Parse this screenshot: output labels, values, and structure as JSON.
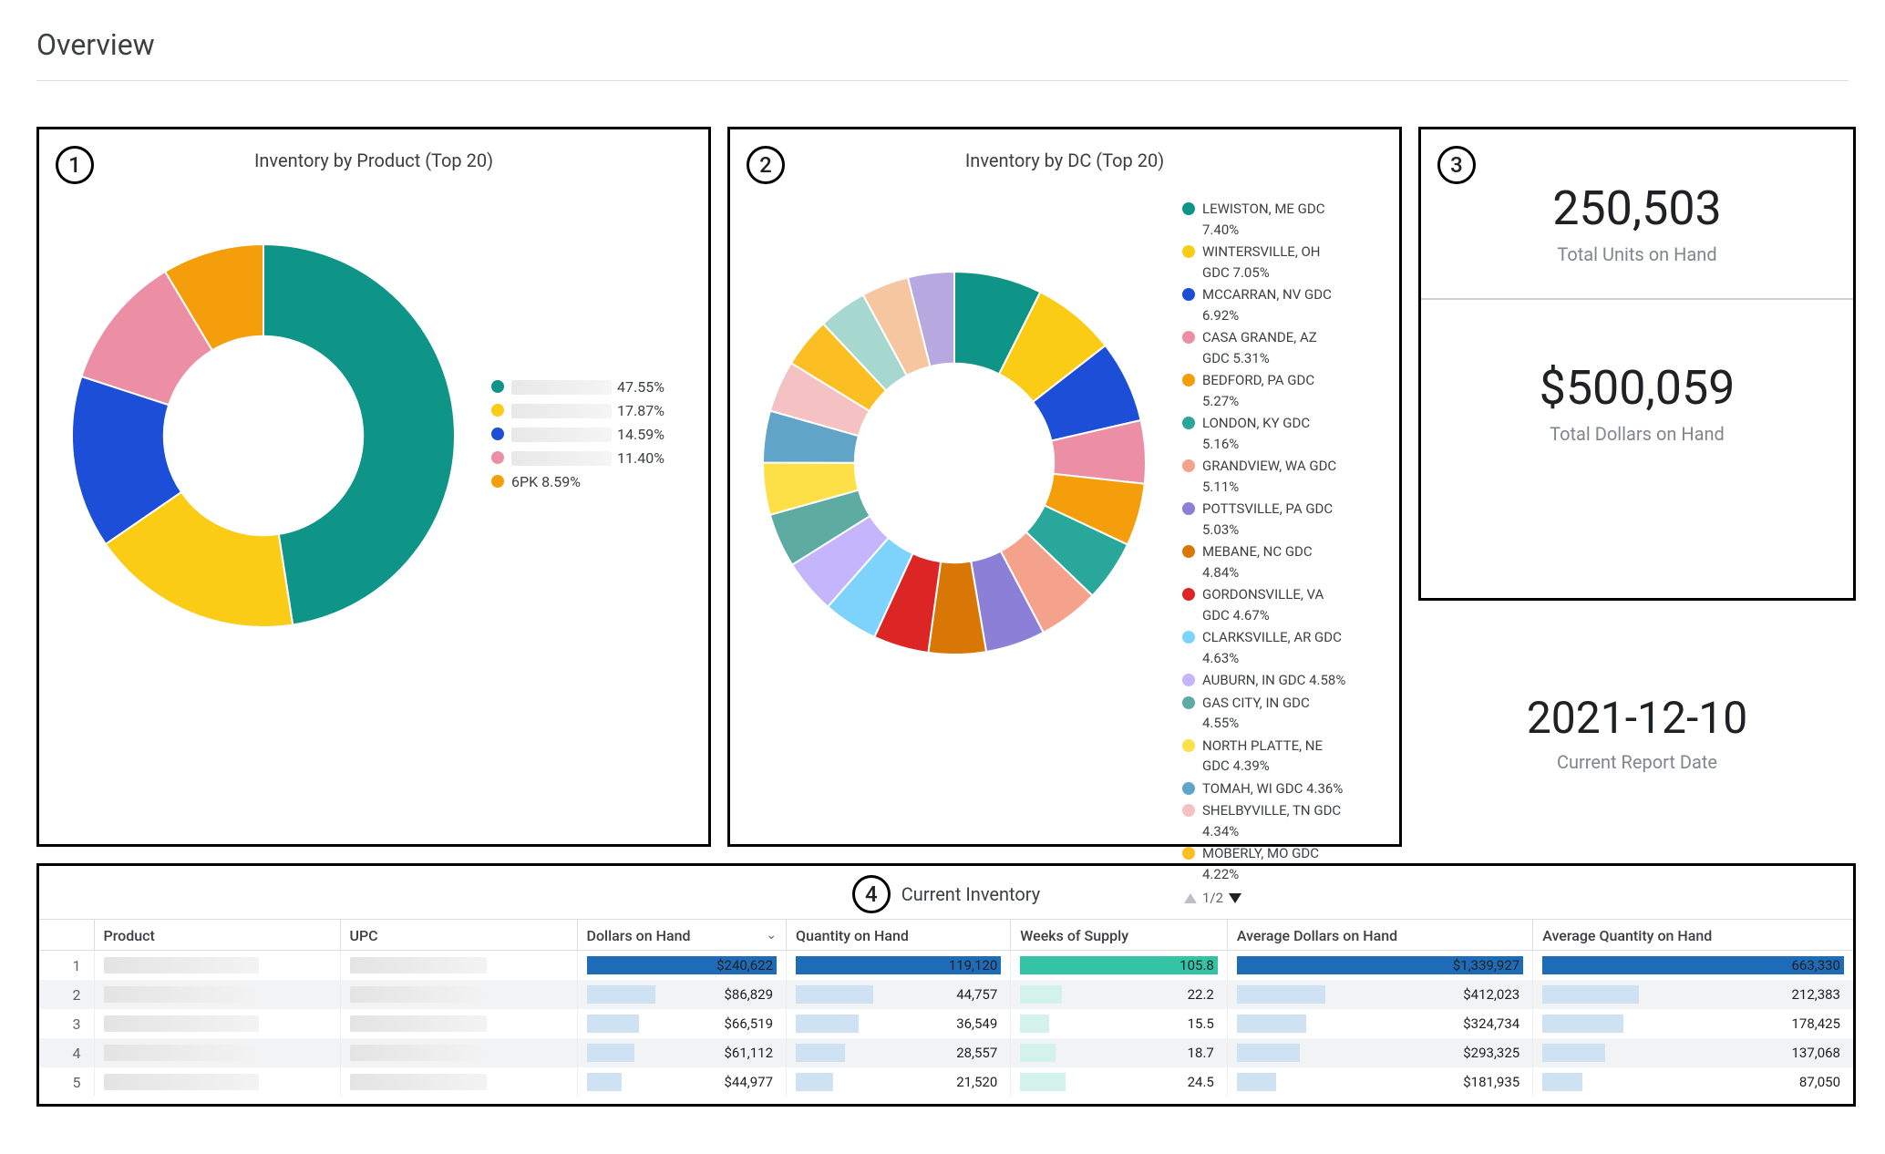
{
  "page": {
    "title": "Overview"
  },
  "panel_badges": [
    "1",
    "2",
    "3",
    "4"
  ],
  "chart1": {
    "type": "donut",
    "title": "Inventory by Product (Top 20)",
    "inner_radius_ratio": 0.52,
    "background": "#ffffff",
    "slices": [
      {
        "label_redacted": true,
        "pct_label": "47.55%",
        "value": 47.55,
        "color": "#0f9488"
      },
      {
        "label_redacted": true,
        "pct_label": "17.87%",
        "value": 17.87,
        "color": "#facc15"
      },
      {
        "label_redacted": true,
        "pct_label": "14.59%",
        "value": 14.59,
        "color": "#1d4ed8"
      },
      {
        "label_redacted": true,
        "pct_label": "11.40%",
        "value": 11.4,
        "color": "#ec8fa5"
      },
      {
        "label_redacted": false,
        "label": "6PK",
        "pct_label": "6PK 8.59%",
        "value": 8.59,
        "color": "#f59e0b"
      }
    ]
  },
  "chart2": {
    "type": "donut",
    "title": "Inventory by DC (Top 20)",
    "inner_radius_ratio": 0.52,
    "background": "#ffffff",
    "pager": {
      "text": "1/2"
    },
    "slices": [
      {
        "label": "LEWISTON, ME GDC 7.40%",
        "value": 7.4,
        "color": "#0f9488"
      },
      {
        "label": "WINTERSVILLE, OH GDC 7.05%",
        "value": 7.05,
        "color": "#facc15"
      },
      {
        "label": "MCCARRAN, NV GDC 6.92%",
        "value": 6.92,
        "color": "#1d4ed8"
      },
      {
        "label": "CASA GRANDE, AZ GDC 5.31%",
        "value": 5.31,
        "color": "#ec8fa5"
      },
      {
        "label": "BEDFORD, PA GDC 5.27%",
        "value": 5.27,
        "color": "#f59e0b"
      },
      {
        "label": "LONDON, KY GDC 5.16%",
        "value": 5.16,
        "color": "#2aa79b"
      },
      {
        "label": "GRANDVIEW, WA GDC 5.11%",
        "value": 5.11,
        "color": "#f4a28c"
      },
      {
        "label": "POTTSVILLE, PA GDC 5.03%",
        "value": 5.03,
        "color": "#8b7fd7"
      },
      {
        "label": "MEBANE, NC GDC 4.84%",
        "value": 4.84,
        "color": "#d97706"
      },
      {
        "label": "GORDONSVILLE, VA GDC 4.67%",
        "value": 4.67,
        "color": "#dc2626"
      },
      {
        "label": "CLARKSVILLE, AR GDC 4.63%",
        "value": 4.63,
        "color": "#7dd3fc"
      },
      {
        "label": "AUBURN, IN GDC 4.58%",
        "value": 4.58,
        "color": "#c4b5fd"
      },
      {
        "label": "GAS CITY, IN GDC 4.55%",
        "value": 4.55,
        "color": "#5eaba2"
      },
      {
        "label": "NORTH PLATTE, NE GDC 4.39%",
        "value": 4.39,
        "color": "#fde047"
      },
      {
        "label": "TOMAH, WI GDC 4.36%",
        "value": 4.36,
        "color": "#60a5c8"
      },
      {
        "label": "SHELBYVILLE, TN GDC 4.34%",
        "value": 4.34,
        "color": "#f4c2c2"
      },
      {
        "label": "MOBERLY, MO GDC 4.22%",
        "value": 4.22,
        "color": "#fbbf24"
      },
      {
        "label": "",
        "value": 4.1,
        "color": "#a7d8d0"
      },
      {
        "label": "",
        "value": 4.0,
        "color": "#f5c6a0"
      },
      {
        "label": "",
        "value": 3.9,
        "color": "#b8a8e0"
      }
    ],
    "visible_legend_count": 17
  },
  "kpis": {
    "units": {
      "value": "250,503",
      "label": "Total Units on Hand"
    },
    "dollars": {
      "value": "$500,059",
      "label": "Total Dollars on Hand"
    },
    "date": {
      "value": "2021-12-10",
      "label": "Current Report Date"
    }
  },
  "table": {
    "title": "Current Inventory",
    "sorted_column_index": 2,
    "columns": [
      {
        "key": "idx",
        "label": ""
      },
      {
        "key": "product",
        "label": "Product"
      },
      {
        "key": "upc",
        "label": "UPC"
      },
      {
        "key": "dollars",
        "label": "Dollars on Hand",
        "bar_color": "#1e6bb8",
        "bar_color_light": "#cfe2f3",
        "max": 240622
      },
      {
        "key": "qty",
        "label": "Quantity on Hand",
        "bar_color": "#1e6bb8",
        "bar_color_light": "#cfe2f3",
        "max": 119120
      },
      {
        "key": "weeks",
        "label": "Weeks of Supply",
        "bar_color": "#34c3a5",
        "bar_color_light": "#d2f2ea",
        "max": 105.8
      },
      {
        "key": "avgd",
        "label": "Average Dollars on Hand",
        "bar_color": "#1e6bb8",
        "bar_color_light": "#cfe2f3",
        "max": 1339927
      },
      {
        "key": "avgq",
        "label": "Average Quantity on Hand",
        "bar_color": "#1e6bb8",
        "bar_color_light": "#cfe2f3",
        "max": 663330
      }
    ],
    "rows": [
      {
        "idx": "1",
        "dollars": "$240,622",
        "dollars_v": 240622,
        "qty": "119,120",
        "qty_v": 119120,
        "weeks": "105.8",
        "weeks_v": 105.8,
        "avgd": "$1,339,927",
        "avgd_v": 1339927,
        "avgq": "663,330",
        "avgq_v": 663330
      },
      {
        "idx": "2",
        "dollars": "$86,829",
        "dollars_v": 86829,
        "qty": "44,757",
        "qty_v": 44757,
        "weeks": "22.2",
        "weeks_v": 22.2,
        "avgd": "$412,023",
        "avgd_v": 412023,
        "avgq": "212,383",
        "avgq_v": 212383
      },
      {
        "idx": "3",
        "dollars": "$66,519",
        "dollars_v": 66519,
        "qty": "36,549",
        "qty_v": 36549,
        "weeks": "15.5",
        "weeks_v": 15.5,
        "avgd": "$324,734",
        "avgd_v": 324734,
        "avgq": "178,425",
        "avgq_v": 178425
      },
      {
        "idx": "4",
        "dollars": "$61,112",
        "dollars_v": 61112,
        "qty": "28,557",
        "qty_v": 28557,
        "weeks": "18.7",
        "weeks_v": 18.7,
        "avgd": "$293,325",
        "avgd_v": 293325,
        "avgq": "137,068",
        "avgq_v": 137068
      },
      {
        "idx": "5",
        "dollars": "$44,977",
        "dollars_v": 44977,
        "qty": "21,520",
        "qty_v": 21520,
        "weeks": "24.5",
        "weeks_v": 24.5,
        "avgd": "$181,935",
        "avgd_v": 181935,
        "avgq": "87,050",
        "avgq_v": 87050
      }
    ]
  }
}
